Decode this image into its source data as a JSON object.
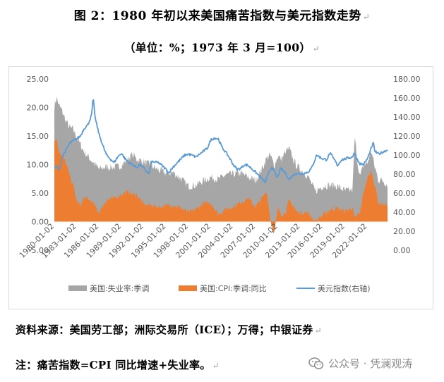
{
  "title": "图 2：1980 年初以来美国痛苦指数与美元指数走势",
  "subtitle": "（单位：%；1973 年 3 月=100）",
  "para_mark": "↵",
  "source": "资料来源：美国劳工部；洲际交易所（ICE）；万得；中银证券",
  "note": "注：痛苦指数=CPI 同比增速+失业率。",
  "watermark": {
    "text": "公众号 · 凭澜观涛",
    "icon": "wechat-icon"
  },
  "colors": {
    "misery": "#a6a6a6",
    "cpi": "#ed7d31",
    "dxy": "#5b9bd5"
  },
  "chart_data": {
    "type": "area",
    "x_ticks": [
      "1980-01-02",
      "1983-01-02",
      "1986-01-02",
      "1989-01-02",
      "1992-01-02",
      "1995-01-02",
      "1998-01-02",
      "2001-01-02",
      "2004-01-02",
      "2007-01-02",
      "2010-01-02",
      "2013-01-02",
      "2016-01-02",
      "2019-01-02",
      "2022-01-02"
    ],
    "x_range": [
      1980.0,
      2024.7
    ],
    "y_left": {
      "min": -5,
      "max": 25,
      "ticks": [
        "-5.00",
        "0.00",
        "5.00",
        "10.00",
        "15.00",
        "20.00",
        "25.00"
      ]
    },
    "y_right": {
      "min": 0,
      "max": 180,
      "ticks": [
        "0.00",
        "20.00",
        "40.00",
        "60.00",
        "80.00",
        "100.00",
        "120.00",
        "140.00",
        "160.00",
        "180.00"
      ]
    },
    "grid": false,
    "legend_position": "bottom",
    "series": [
      {
        "name": "美国:失业率:季调",
        "type": "area",
        "axis": "left",
        "x": [
          1980.0,
          1980.3,
          1980.6,
          1981.0,
          1981.5,
          1982.0,
          1982.5,
          1983.0,
          1983.5,
          1984.0,
          1985.0,
          1986.0,
          1987.0,
          1988.0,
          1989.0,
          1990.0,
          1990.5,
          1991.0,
          1992.0,
          1993.0,
          1994.0,
          1995.0,
          1996.0,
          1997.0,
          1998.0,
          1999.0,
          2000.0,
          2001.0,
          2002.0,
          2003.0,
          2004.0,
          2005.0,
          2006.0,
          2007.0,
          2008.0,
          2008.5,
          2009.0,
          2009.5,
          2010.0,
          2010.5,
          2011.0,
          2011.5,
          2012.0,
          2012.5,
          2013.0,
          2014.0,
          2015.0,
          2016.0,
          2017.0,
          2018.0,
          2019.0,
          2020.0,
          2020.3,
          2020.6,
          2021.0,
          2021.5,
          2022.0,
          2022.5,
          2023.0,
          2023.5,
          2024.0,
          2024.6
        ],
        "values": [
          20.1,
          21.8,
          20.4,
          19.5,
          17.8,
          16.5,
          16.2,
          14.8,
          13.5,
          12.2,
          10.7,
          9.2,
          9.6,
          9.5,
          9.8,
          11.2,
          11.8,
          11.0,
          10.5,
          9.8,
          9.0,
          8.5,
          8.6,
          7.5,
          6.2,
          6.4,
          7.2,
          7.8,
          7.4,
          8.2,
          8.3,
          8.5,
          7.8,
          7.2,
          9.6,
          11.2,
          11.6,
          9.8,
          11.5,
          10.9,
          12.2,
          12.8,
          11.0,
          9.8,
          9.2,
          8.0,
          5.3,
          6.2,
          6.4,
          6.2,
          5.4,
          5.5,
          15.0,
          11.0,
          7.8,
          10.0,
          10.2,
          12.5,
          9.5,
          7.2,
          7.3,
          6.5
        ]
      },
      {
        "name": "美国:CPI:季调:同比",
        "type": "area",
        "axis": "left",
        "x": [
          1980.0,
          1980.3,
          1980.6,
          1981.0,
          1981.5,
          1982.0,
          1982.5,
          1983.0,
          1983.5,
          1984.0,
          1985.0,
          1986.0,
          1987.0,
          1988.0,
          1989.0,
          1990.0,
          1990.5,
          1991.0,
          1992.0,
          1993.0,
          1994.0,
          1995.0,
          1996.0,
          1997.0,
          1998.0,
          1999.0,
          2000.0,
          2001.0,
          2002.0,
          2003.0,
          2004.0,
          2005.0,
          2006.0,
          2007.0,
          2008.0,
          2008.5,
          2009.0,
          2009.5,
          2010.0,
          2010.5,
          2011.0,
          2011.5,
          2012.0,
          2012.5,
          2013.0,
          2014.0,
          2015.0,
          2016.0,
          2017.0,
          2018.0,
          2019.0,
          2020.0,
          2020.3,
          2020.6,
          2021.0,
          2021.5,
          2022.0,
          2022.5,
          2023.0,
          2023.5,
          2024.0,
          2024.6
        ],
        "values": [
          14.0,
          14.6,
          12.6,
          11.4,
          10.5,
          8.3,
          6.5,
          3.6,
          2.8,
          4.2,
          3.6,
          1.6,
          3.8,
          4.1,
          4.8,
          5.3,
          4.7,
          4.8,
          3.0,
          2.9,
          2.6,
          2.8,
          2.9,
          2.4,
          1.6,
          2.2,
          3.2,
          3.3,
          1.3,
          2.2,
          2.6,
          3.4,
          4.1,
          2.6,
          4.3,
          5.4,
          0.1,
          -2.1,
          2.4,
          1.2,
          1.6,
          3.7,
          2.9,
          1.7,
          1.6,
          1.6,
          0.1,
          1.1,
          2.1,
          2.4,
          1.8,
          2.5,
          0.3,
          1.2,
          1.4,
          5.3,
          7.5,
          8.9,
          6.4,
          3.2,
          3.1,
          2.9
        ]
      },
      {
        "name": "美元指数(右轴)",
        "type": "line",
        "axis": "right",
        "x": [
          1980.0,
          1980.3,
          1980.7,
          1981.0,
          1981.5,
          1982.0,
          1982.5,
          1983.0,
          1983.5,
          1984.0,
          1984.5,
          1985.0,
          1985.2,
          1985.5,
          1986.0,
          1986.5,
          1987.0,
          1987.5,
          1988.0,
          1988.5,
          1989.0,
          1989.5,
          1990.0,
          1990.5,
          1991.0,
          1991.5,
          1992.0,
          1992.7,
          1993.0,
          1994.0,
          1995.0,
          1995.3,
          1996.0,
          1997.0,
          1997.5,
          1998.0,
          1998.7,
          1999.0,
          2000.0,
          2000.5,
          2001.0,
          2001.5,
          2002.0,
          2002.5,
          2003.0,
          2003.5,
          2004.0,
          2004.5,
          2005.0,
          2005.5,
          2006.0,
          2007.0,
          2008.0,
          2008.3,
          2008.9,
          2009.2,
          2009.9,
          2010.4,
          2011.0,
          2011.5,
          2012.0,
          2012.5,
          2013.0,
          2014.0,
          2014.5,
          2015.0,
          2015.2,
          2016.0,
          2016.5,
          2017.0,
          2017.8,
          2018.0,
          2018.5,
          2019.0,
          2020.0,
          2020.2,
          2020.8,
          2021.0,
          2021.5,
          2022.0,
          2022.8,
          2023.0,
          2023.5,
          2024.0,
          2024.6
        ],
        "values": [
          86,
          88,
          84,
          98,
          104,
          112,
          115,
          117,
          120,
          128,
          132,
          142,
          160,
          138,
          122,
          110,
          100,
          96,
          92,
          98,
          102,
          96,
          92,
          90,
          87,
          90,
          86,
          80,
          93,
          92,
          85,
          81,
          88,
          96,
          100,
          101,
          99,
          98,
          104,
          107,
          116,
          118,
          117,
          108,
          103,
          97,
          90,
          85,
          86,
          90,
          89,
          82,
          74,
          71,
          84,
          88,
          76,
          86,
          81,
          74,
          79,
          81,
          80,
          82,
          86,
          96,
          100,
          96,
          95,
          102,
          92,
          89,
          95,
          96,
          98,
          103,
          93,
          91,
          90,
          96,
          113,
          104,
          101,
          103,
          105
        ]
      }
    ]
  }
}
